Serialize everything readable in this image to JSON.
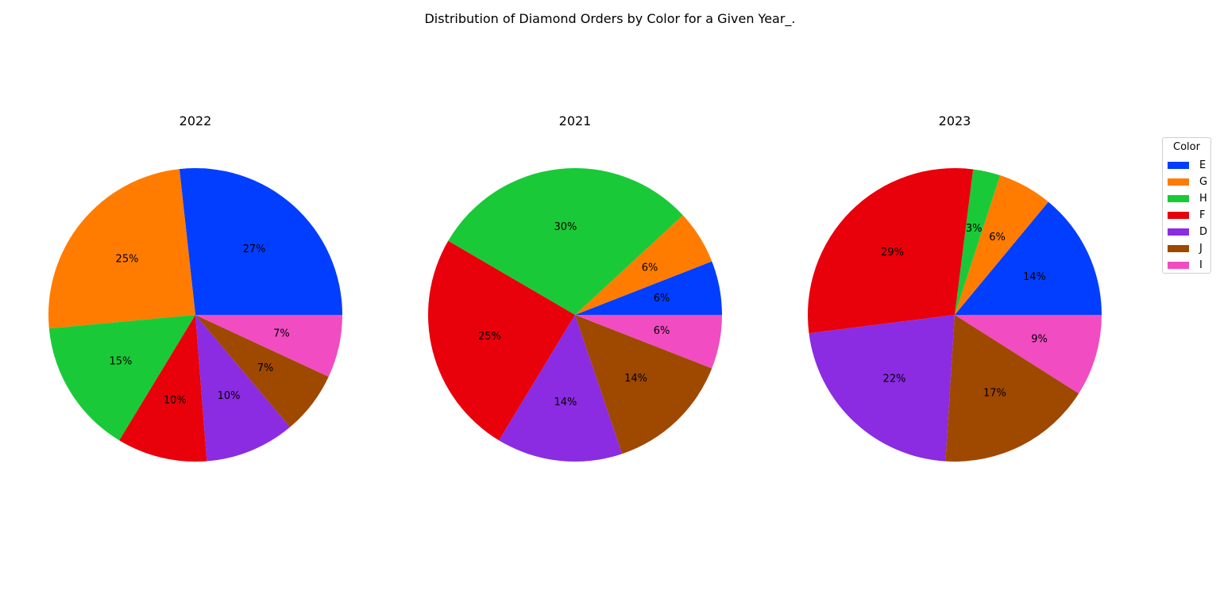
{
  "chart_data": {
    "type": "pie",
    "title": "Distribution of Diamond Orders by Color for a Given Year_.",
    "legend": {
      "title": "Color",
      "placement": "right",
      "entries": [
        "E",
        "G",
        "H",
        "F",
        "D",
        "J",
        "I"
      ]
    },
    "colors": {
      "E": "#023eff",
      "G": "#ff7c00",
      "H": "#1ac938",
      "F": "#e8000b",
      "D": "#8b2be2",
      "J": "#9f4800",
      "I": "#f14cc1"
    },
    "charts": [
      {
        "title": "2022",
        "slices": [
          {
            "label": "E",
            "value": 27,
            "text": "27%"
          },
          {
            "label": "G",
            "value": 25,
            "text": "25%"
          },
          {
            "label": "H",
            "value": 15,
            "text": "15%"
          },
          {
            "label": "F",
            "value": 10,
            "text": "10%"
          },
          {
            "label": "D",
            "value": 10,
            "text": "10%"
          },
          {
            "label": "J",
            "value": 7,
            "text": "7%"
          },
          {
            "label": "I",
            "value": 7,
            "text": "7%"
          }
        ]
      },
      {
        "title": "2021",
        "slices": [
          {
            "label": "E",
            "value": 6,
            "text": "6%"
          },
          {
            "label": "G",
            "value": 6,
            "text": "6%"
          },
          {
            "label": "H",
            "value": 30,
            "text": "30%"
          },
          {
            "label": "F",
            "value": 25,
            "text": "25%"
          },
          {
            "label": "D",
            "value": 14,
            "text": "14%"
          },
          {
            "label": "J",
            "value": 14,
            "text": "14%"
          },
          {
            "label": "I",
            "value": 6,
            "text": "6%"
          }
        ]
      },
      {
        "title": "2023",
        "slices": [
          {
            "label": "E",
            "value": 14,
            "text": "14%"
          },
          {
            "label": "G",
            "value": 6,
            "text": "6%"
          },
          {
            "label": "H",
            "value": 3,
            "text": "3%"
          },
          {
            "label": "F",
            "value": 29,
            "text": "29%"
          },
          {
            "label": "D",
            "value": 22,
            "text": "22%"
          },
          {
            "label": "J",
            "value": 17,
            "text": "17%"
          },
          {
            "label": "I",
            "value": 9,
            "text": "9%"
          }
        ]
      }
    ]
  }
}
